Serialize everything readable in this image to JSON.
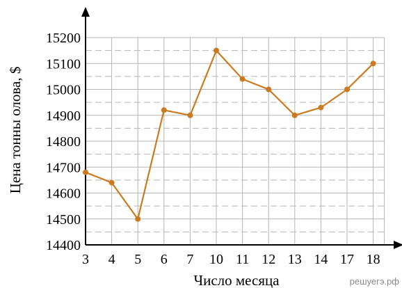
{
  "chart_data": {
    "type": "line",
    "xlabel": "Число месяца",
    "ylabel": "Цена тонны олова, $",
    "categories": [
      "3",
      "4",
      "5",
      "6",
      "7",
      "10",
      "11",
      "12",
      "13",
      "14",
      "17",
      "18"
    ],
    "values": [
      14680,
      14640,
      14500,
      14920,
      14900,
      15150,
      15040,
      15000,
      14900,
      14930,
      15000,
      15100
    ],
    "yticks": [
      14400,
      14500,
      14600,
      14700,
      14800,
      14900,
      15000,
      15100,
      15200
    ],
    "ylim": [
      14400,
      15200
    ],
    "grid": true,
    "line_color": "#cc7a1f",
    "grid_color": "#b5b5b5"
  },
  "watermark": "решуегэ.рф"
}
